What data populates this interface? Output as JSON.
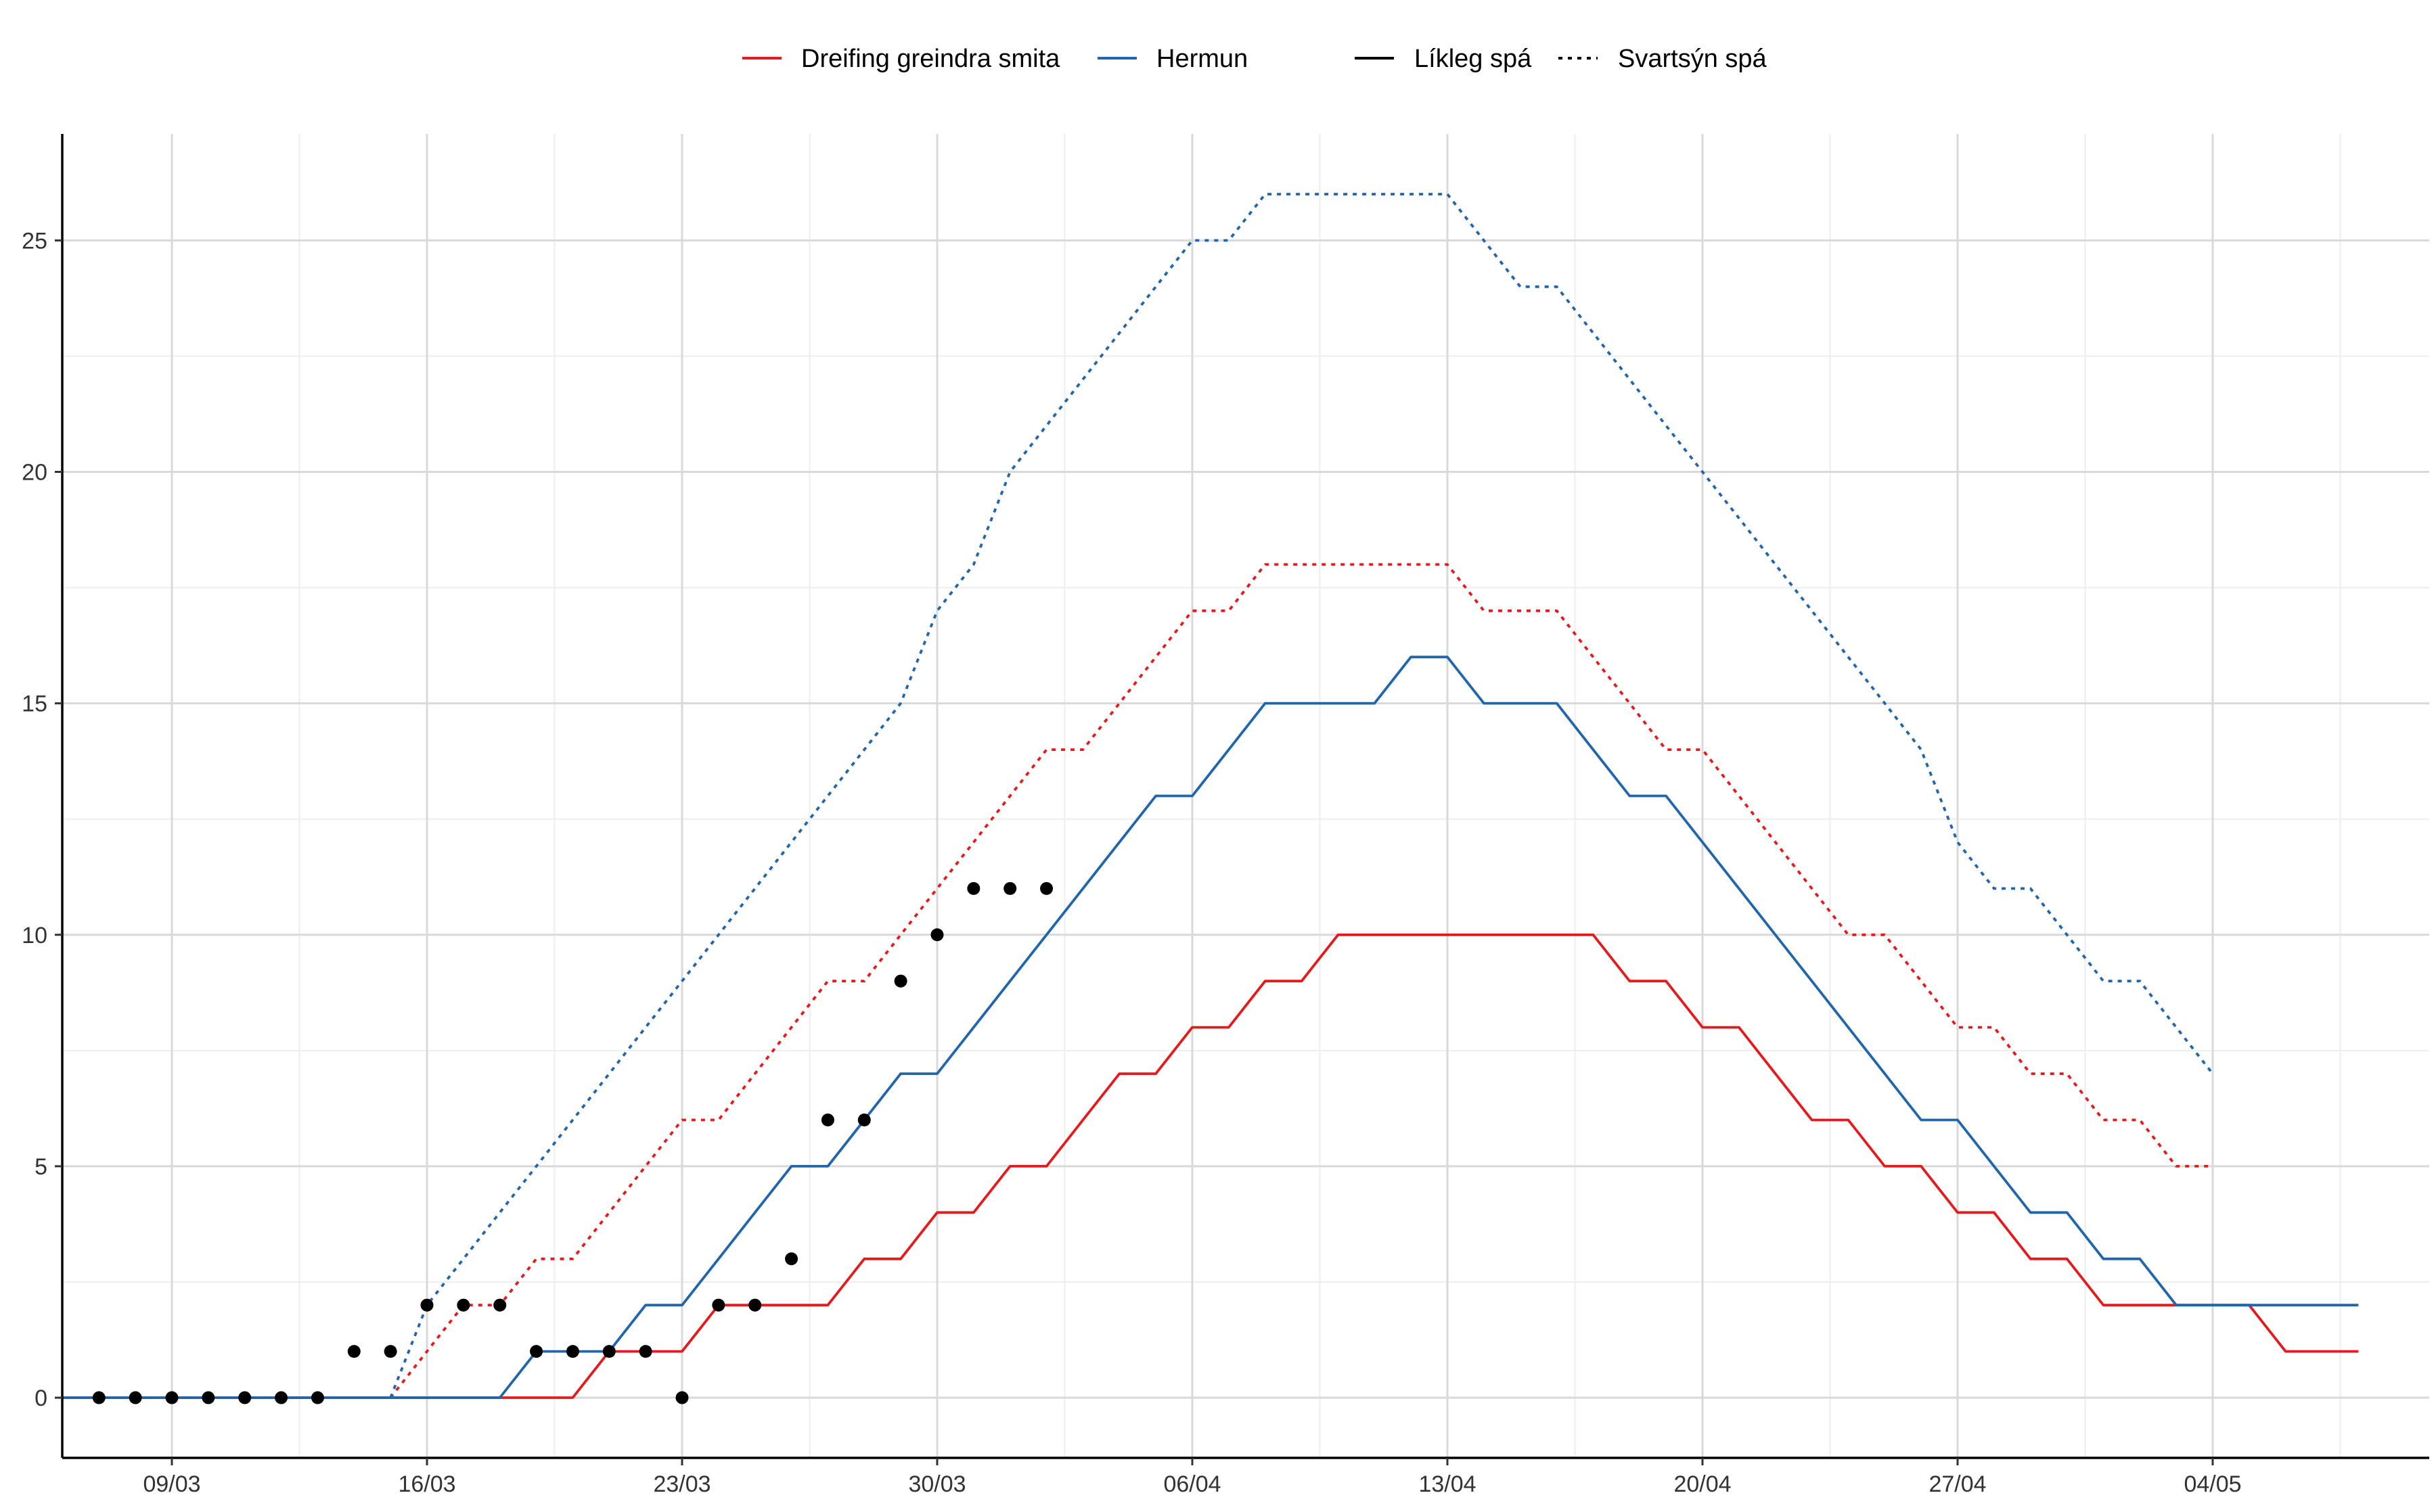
{
  "legend": {
    "color_entries": [
      {
        "label": "Dreifing greindra smita",
        "color": "#e41a1c"
      },
      {
        "label": "Hermun",
        "color": "#2166ac"
      }
    ],
    "linetype_entries": [
      {
        "label": "Líkleg spá",
        "dash": "solid"
      },
      {
        "label": "Svartsýn spá",
        "dash": "dotted"
      }
    ],
    "placement": "top"
  },
  "chart_data": {
    "type": "line",
    "title": "",
    "xlabel": "",
    "ylabel": "",
    "x_axis": {
      "start_date": "2020-03-03",
      "end_date": "2020-05-04",
      "tick_labels": [
        "09/03",
        "16/03",
        "23/03",
        "30/03",
        "06/04",
        "13/04",
        "20/04",
        "27/04",
        "04/05"
      ],
      "tick_dates": [
        "2020-03-09",
        "2020-03-16",
        "2020-03-23",
        "2020-03-30",
        "2020-04-06",
        "2020-04-13",
        "2020-04-20",
        "2020-04-27",
        "2020-05-04"
      ]
    },
    "y_axis": {
      "range": [
        -1.3,
        27.3
      ],
      "ticks": [
        0,
        5,
        10,
        15,
        20,
        25
      ],
      "minor_ticks": [
        2.5,
        7.5,
        12.5,
        17.5,
        22.5
      ]
    },
    "grid": true,
    "series": [
      {
        "name": "Dreifing greindra smita",
        "scenario": "Líkleg spá",
        "color": "#e41a1c",
        "dash": "solid",
        "step": true,
        "start_date": "2020-03-06",
        "values": [
          0,
          0,
          0,
          0,
          0,
          0,
          0,
          0,
          0,
          0,
          0,
          0,
          0,
          0,
          0,
          1,
          1,
          1,
          2,
          2,
          2,
          2,
          3,
          3,
          4,
          4,
          5,
          5,
          6,
          7,
          7,
          8,
          8,
          9,
          9,
          10,
          10,
          10,
          10,
          10,
          10,
          10,
          10,
          9,
          9,
          8,
          8,
          7,
          6,
          6,
          5,
          5,
          4,
          4,
          3,
          3,
          2,
          2,
          2,
          2,
          2,
          1,
          1,
          1
        ]
      },
      {
        "name": "Dreifing greindra smita",
        "scenario": "Svartsýn spá",
        "color": "#e41a1c",
        "dash": "dotted",
        "step": true,
        "start_date": "2020-03-15",
        "values": [
          0,
          1,
          2,
          2,
          3,
          3,
          4,
          5,
          6,
          6,
          7,
          8,
          9,
          9,
          10,
          11,
          12,
          13,
          14,
          14,
          15,
          16,
          17,
          17,
          18,
          18,
          18,
          18,
          18,
          18,
          17,
          17,
          17,
          16,
          15,
          14,
          14,
          13,
          12,
          11,
          10,
          10,
          9,
          8,
          8,
          7,
          7,
          6,
          6,
          5,
          5
        ]
      },
      {
        "name": "Hermun",
        "scenario": "Líkleg spá",
        "color": "#2166ac",
        "dash": "solid",
        "step": true,
        "start_date": "2020-03-06",
        "values": [
          0,
          0,
          0,
          0,
          0,
          0,
          0,
          0,
          0,
          0,
          0,
          0,
          0,
          1,
          1,
          1,
          2,
          2,
          3,
          4,
          5,
          5,
          6,
          7,
          7,
          8,
          9,
          10,
          11,
          12,
          13,
          13,
          14,
          15,
          15,
          15,
          15,
          16,
          16,
          15,
          15,
          15,
          14,
          13,
          13,
          12,
          11,
          10,
          9,
          8,
          7,
          6,
          6,
          5,
          4,
          4,
          3,
          3,
          2,
          2,
          2,
          2,
          2,
          2
        ]
      },
      {
        "name": "Hermun",
        "scenario": "Svartsýn spá",
        "color": "#2166ac",
        "dash": "dotted",
        "step": true,
        "start_date": "2020-03-15",
        "values": [
          0,
          2,
          3,
          4,
          5,
          6,
          7,
          8,
          9,
          10,
          11,
          12,
          13,
          14,
          15,
          17,
          18,
          20,
          21,
          22,
          23,
          24,
          25,
          25,
          26,
          26,
          26,
          26,
          26,
          26,
          25,
          24,
          24,
          23,
          22,
          21,
          20,
          19,
          18,
          17,
          16,
          15,
          14,
          12,
          11,
          11,
          10,
          9,
          9,
          8,
          7
        ]
      }
    ],
    "observed_points": {
      "color": "#000000",
      "start_date": "2020-03-07",
      "values": [
        0,
        0,
        0,
        0,
        0,
        0,
        0,
        1,
        1,
        2,
        2,
        2,
        1,
        1,
        1,
        1,
        0,
        2,
        2,
        3,
        6,
        6,
        9,
        10,
        11,
        11,
        11
      ]
    }
  }
}
